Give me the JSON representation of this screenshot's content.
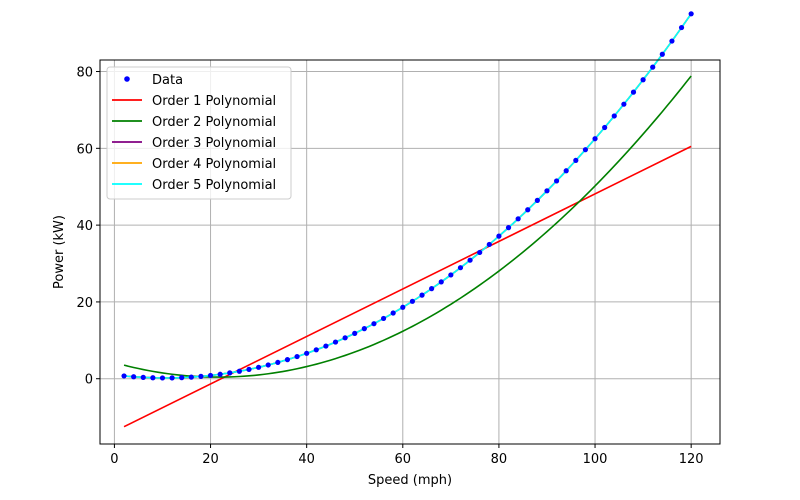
{
  "chart_data": {
    "type": "line",
    "title": "",
    "xlabel": "Speed (mph)",
    "ylabel": "Power (kW)",
    "xlim": [
      -3,
      126
    ],
    "ylim": [
      -17,
      83
    ],
    "xticks": [
      0,
      20,
      40,
      60,
      80,
      100,
      120
    ],
    "yticks": [
      0,
      20,
      40,
      60,
      80
    ],
    "grid": true,
    "legend_position": "top-left",
    "scatter": {
      "name": "Data",
      "color": "#0000ff",
      "x_start": 2,
      "x_step": 2,
      "count": 60,
      "curve_coefficients": [
        1.0,
        -0.15,
        0.007,
        6.5e-06
      ]
    },
    "series": [
      {
        "name": "Order 1 Polynomial",
        "color": "#ff0000",
        "x": [
          2,
          120
        ],
        "y": [
          -12.5,
          60.5
        ]
      },
      {
        "name": "Order 2 Polynomial",
        "color": "#008000",
        "x_range": [
          2,
          120
        ],
        "coefficients": [
          4.2,
          -0.35,
          0.0081
        ]
      },
      {
        "name": "Order 3 Polynomial",
        "color": "#800080",
        "x_range": [
          2,
          120
        ],
        "coefficients": [
          1.0,
          -0.15,
          0.007,
          6.5e-06
        ]
      },
      {
        "name": "Order 4 Polynomial",
        "color": "#ffa500",
        "x_range": [
          2,
          120
        ],
        "coefficients": [
          1.0,
          -0.15,
          0.007,
          6.5e-06
        ]
      },
      {
        "name": "Order 5 Polynomial",
        "color": "#00ffff",
        "x_range": [
          2,
          120
        ],
        "coefficients": [
          1.0,
          -0.15,
          0.007,
          6.5e-06
        ]
      }
    ]
  }
}
